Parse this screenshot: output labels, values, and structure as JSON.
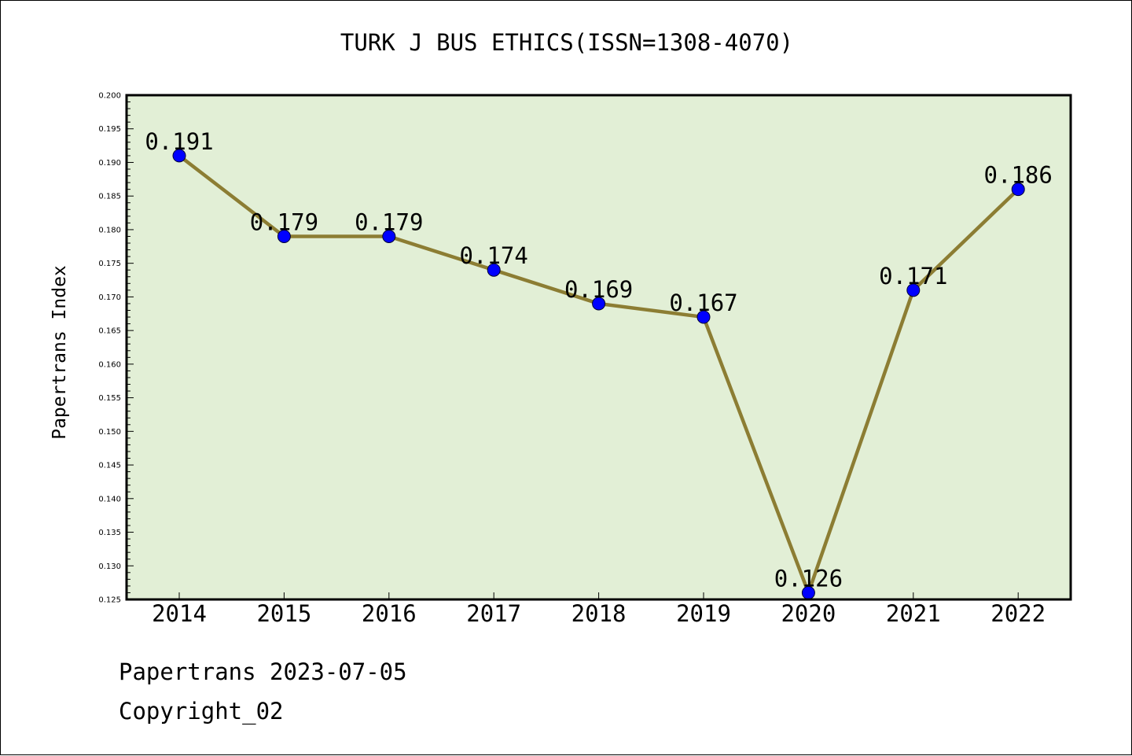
{
  "chart_data": {
    "type": "line",
    "title": "TURK J BUS ETHICS(ISSN=1308-4070)",
    "ylabel": "Papertrans Index",
    "xlabel": "",
    "categories": [
      "2014",
      "2015",
      "2016",
      "2017",
      "2018",
      "2019",
      "2020",
      "2021",
      "2022"
    ],
    "series": [
      {
        "values": [
          0.191,
          0.179,
          0.179,
          0.174,
          0.169,
          0.167,
          0.126,
          0.171,
          0.186
        ],
        "labels": [
          "0.191",
          "0.179",
          "0.179",
          "0.174",
          "0.169",
          "0.167",
          "0.126",
          "0.171",
          "0.186"
        ]
      }
    ],
    "ylim": [
      0.125,
      0.2
    ],
    "yticks": [
      "0.125",
      "0.130",
      "0.135",
      "0.140",
      "0.145",
      "0.150",
      "0.155",
      "0.160",
      "0.165",
      "0.170",
      "0.175",
      "0.180",
      "0.185",
      "0.190",
      "0.195",
      "0.200"
    ],
    "grid": false,
    "colors": {
      "plot_background": "#e2efd6",
      "line": "#8c7d33",
      "marker": "#0000ff",
      "frame": "#000000"
    }
  },
  "footer": {
    "source": "Papertrans",
    "date": "2023-07-05",
    "copyright": "Copyright_02"
  }
}
